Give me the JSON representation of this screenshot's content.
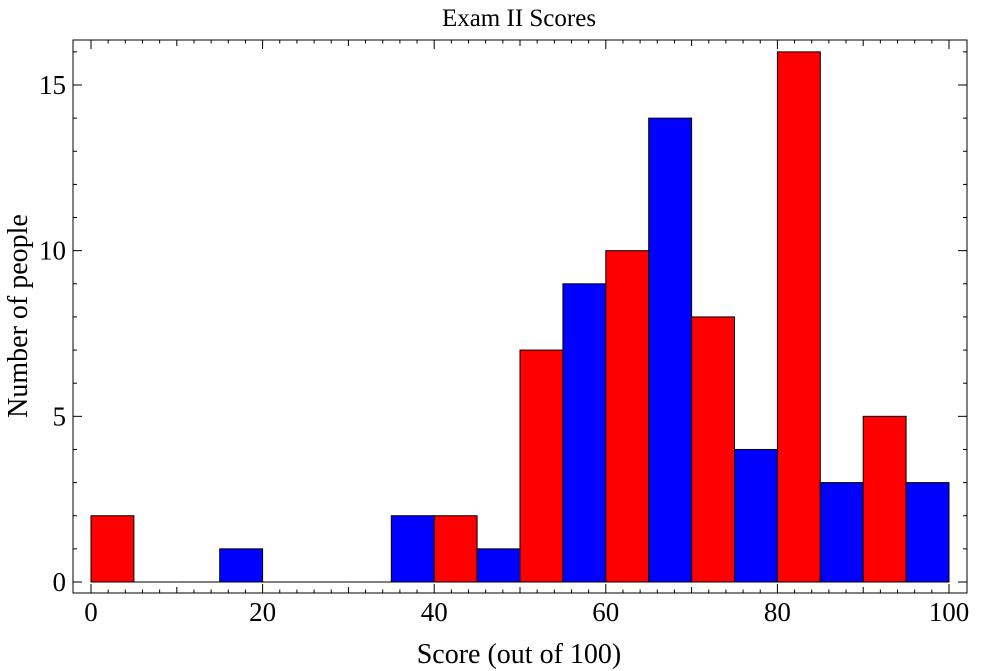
{
  "chart_data": {
    "type": "bar",
    "title": "Exam II Scores",
    "xlabel": "Score (out of 100)",
    "ylabel": "Number of people",
    "xlim": [
      0,
      100
    ],
    "ylim": [
      0,
      16
    ],
    "x_ticks": [
      0,
      20,
      40,
      60,
      80,
      100
    ],
    "y_ticks": [
      0,
      5,
      10,
      15
    ],
    "bin_width": 5,
    "bins": [
      {
        "start": 0,
        "end": 5,
        "value": 2,
        "color": "#ff0000"
      },
      {
        "start": 5,
        "end": 10,
        "value": 0,
        "color": "#0000ff"
      },
      {
        "start": 10,
        "end": 15,
        "value": 0,
        "color": "#ff0000"
      },
      {
        "start": 15,
        "end": 20,
        "value": 1,
        "color": "#0000ff"
      },
      {
        "start": 20,
        "end": 25,
        "value": 0,
        "color": "#ff0000"
      },
      {
        "start": 25,
        "end": 30,
        "value": 0,
        "color": "#0000ff"
      },
      {
        "start": 30,
        "end": 35,
        "value": 0,
        "color": "#ff0000"
      },
      {
        "start": 35,
        "end": 40,
        "value": 2,
        "color": "#0000ff"
      },
      {
        "start": 40,
        "end": 45,
        "value": 2,
        "color": "#ff0000"
      },
      {
        "start": 45,
        "end": 50,
        "value": 1,
        "color": "#0000ff"
      },
      {
        "start": 50,
        "end": 55,
        "value": 7,
        "color": "#ff0000"
      },
      {
        "start": 55,
        "end": 60,
        "value": 9,
        "color": "#0000ff"
      },
      {
        "start": 60,
        "end": 65,
        "value": 10,
        "color": "#ff0000"
      },
      {
        "start": 65,
        "end": 70,
        "value": 14,
        "color": "#0000ff"
      },
      {
        "start": 70,
        "end": 75,
        "value": 8,
        "color": "#ff0000"
      },
      {
        "start": 75,
        "end": 80,
        "value": 4,
        "color": "#0000ff"
      },
      {
        "start": 80,
        "end": 85,
        "value": 16,
        "color": "#ff0000"
      },
      {
        "start": 85,
        "end": 90,
        "value": 3,
        "color": "#0000ff"
      },
      {
        "start": 90,
        "end": 95,
        "value": 5,
        "color": "#ff0000"
      },
      {
        "start": 95,
        "end": 100,
        "value": 3,
        "color": "#0000ff"
      }
    ],
    "grid": false,
    "legend": "none"
  }
}
